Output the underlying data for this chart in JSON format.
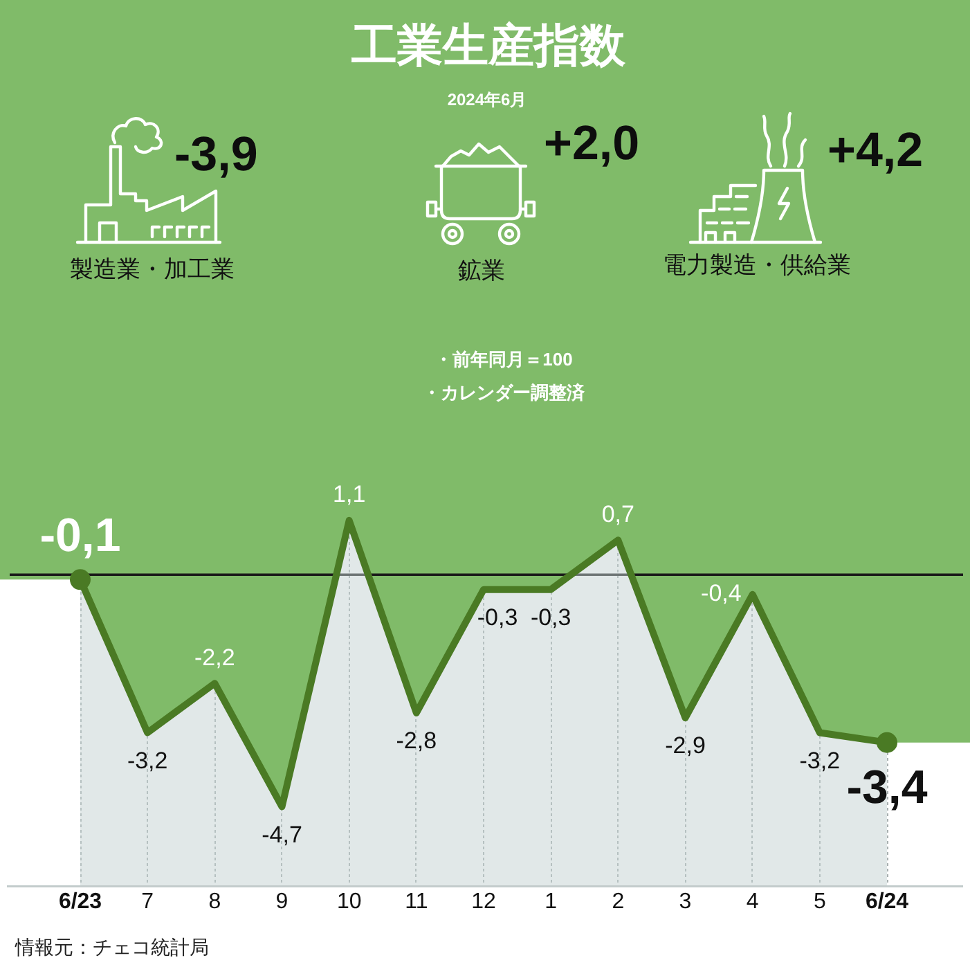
{
  "chart_data": [
    {
      "type": "other",
      "title": "工業生産指数",
      "subtitle": "2024年6月",
      "annotations": [
        "-3,9",
        "製造業・加工業",
        "+2,0",
        "鉱業",
        "+4,2",
        "電力製造・供給業"
      ]
    },
    {
      "type": "line",
      "categories": [
        "6/23",
        "7",
        "8",
        "9",
        "10",
        "11",
        "12",
        "1",
        "2",
        "3",
        "4",
        "5",
        "6/24"
      ],
      "series": [
        {
          "type": "line",
          "color": "#4a7a24",
          "marker": "none",
          "line_style": "solid",
          "values": [
            -0.1,
            -3.2,
            -2.2,
            -4.7,
            1.1,
            -2.8,
            -0.3,
            -0.3,
            0.7,
            -2.9,
            -0.4,
            -3.2,
            -3.4
          ],
          "value_labels": [
            "-0,1",
            "-3,2",
            "-2,2",
            "-4,7",
            "1,1",
            "-2,8",
            "-0,3",
            "-0,3",
            "0,7",
            "-2,9",
            "-0,4",
            "-3,2",
            "-3,4"
          ]
        },
        {
          "type": "scatter",
          "color": "#4a7a24",
          "marker": "circle",
          "x": [
            "6/23",
            "6/24"
          ],
          "values": [
            -0.1,
            -3.4
          ]
        }
      ],
      "ylim": [
        -6.3,
        4.7
      ],
      "tick_labels": "x",
      "grid": "x",
      "ref_lines": [
        {
          "axis": "y",
          "value": 0,
          "color": "#1a1a1a"
        }
      ],
      "annotations": [
        "・前年同月＝100",
        "・カレンダー調整済",
        "情報元：チェコ統計局"
      ]
    }
  ]
}
